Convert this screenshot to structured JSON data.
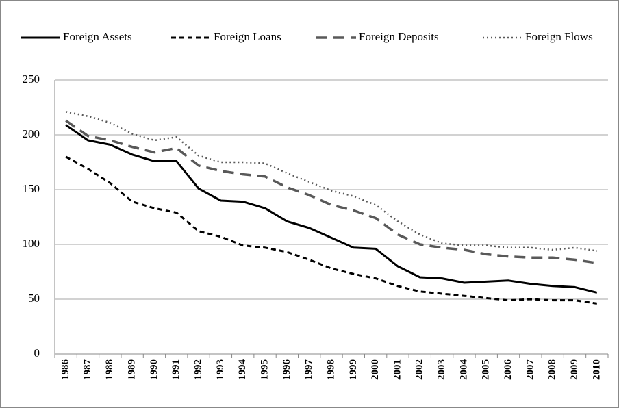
{
  "chart_data": {
    "type": "line",
    "categories": [
      "1986",
      "1987",
      "1988",
      "1989",
      "1990",
      "1991",
      "1992",
      "1993",
      "1994",
      "1995",
      "1996",
      "1997",
      "1998",
      "1999",
      "2000",
      "2001",
      "2002",
      "2003",
      "2004",
      "2005",
      "2006",
      "2007",
      "2008",
      "2009",
      "2010"
    ],
    "series": [
      {
        "name": "Foreign Assets",
        "color": "#000000",
        "line_style": "solid",
        "values": [
          209,
          195,
          191,
          182,
          176,
          176,
          151,
          140,
          139,
          133,
          121,
          115,
          106,
          97,
          96,
          80,
          70,
          69,
          65,
          66,
          67,
          64,
          62,
          61,
          56
        ]
      },
      {
        "name": "Foreign Loans",
        "color": "#000000",
        "line_style": "dashed",
        "values": [
          180,
          169,
          156,
          139,
          133,
          129,
          112,
          107,
          99,
          97,
          93,
          86,
          78,
          73,
          69,
          62,
          57,
          55,
          53,
          51,
          49,
          50,
          49,
          49,
          46
        ]
      },
      {
        "name": "Foreign Deposits",
        "color": "#595959",
        "line_style": "long-dashed",
        "values": [
          213,
          199,
          195,
          189,
          184,
          188,
          172,
          167,
          164,
          162,
          152,
          145,
          136,
          131,
          124,
          109,
          100,
          97,
          95,
          91,
          89,
          88,
          88,
          86,
          83
        ]
      },
      {
        "name": "Foreign Flows",
        "color": "#595959",
        "line_style": "dotted",
        "values": [
          221,
          217,
          211,
          201,
          195,
          198,
          181,
          175,
          175,
          174,
          165,
          157,
          149,
          144,
          136,
          121,
          109,
          101,
          99,
          99,
          97,
          97,
          95,
          97,
          94
        ]
      }
    ],
    "ylim": [
      0,
      250
    ],
    "yticks": [
      0,
      50,
      100,
      150,
      200,
      250
    ],
    "grid": true,
    "legend": "top"
  }
}
